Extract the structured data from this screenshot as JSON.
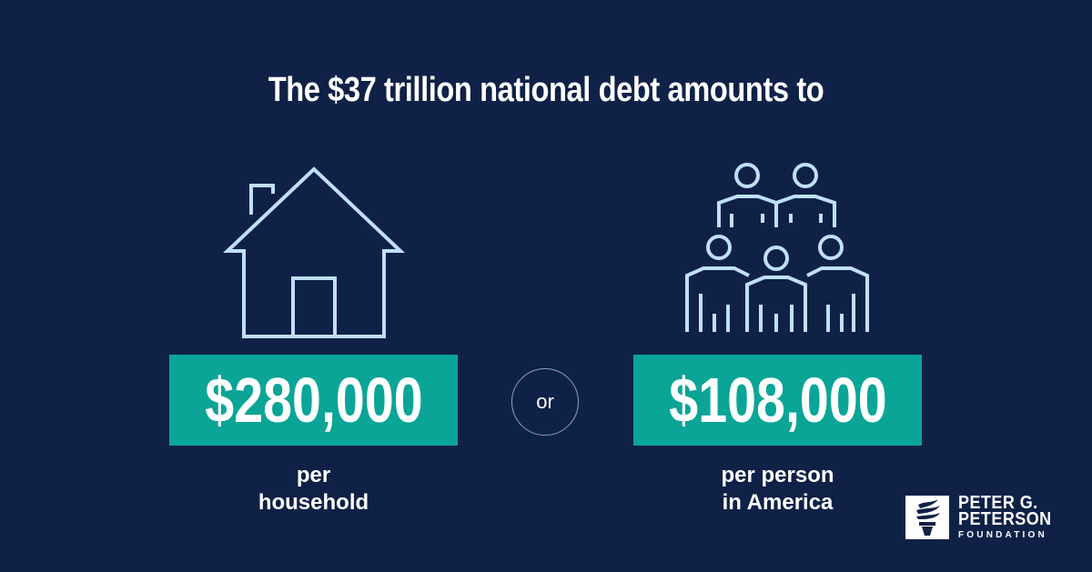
{
  "headline": "The $37 trillion national debt amounts to",
  "household": {
    "icon": "house-icon",
    "amount": "$280,000",
    "caption_line1": "per",
    "caption_line2": "household"
  },
  "separator": "or",
  "person": {
    "icon": "people-group-icon",
    "amount": "$108,000",
    "caption_line1": "per person",
    "caption_line2": "in America"
  },
  "logo": {
    "line1": "PETER G.",
    "line2": "PETERSON",
    "line3": "FOUNDATION",
    "icon": "torch-icon"
  },
  "colors": {
    "background": "#0f2147",
    "accent": "#0aa596",
    "icon_stroke": "#bfe0fa"
  }
}
